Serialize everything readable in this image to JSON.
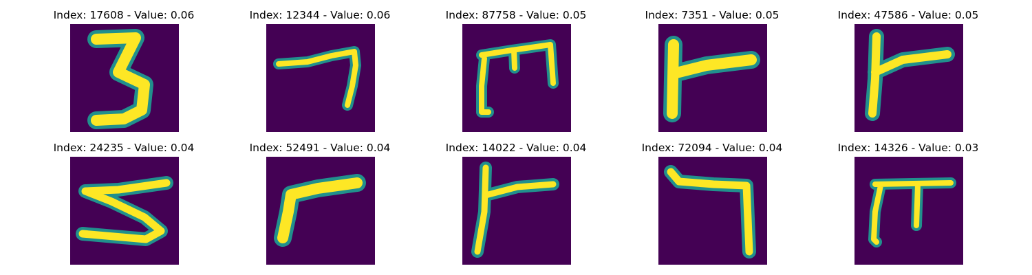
{
  "colors": {
    "background": "#440154",
    "stroke_edge": "#21908d",
    "stroke_core": "#fde725"
  },
  "samples": [
    {
      "title": "Index: 17608 - Value: 0.06",
      "glyph": "three"
    },
    {
      "title": "Index: 12344 - Value: 0.06",
      "glyph": "seven"
    },
    {
      "title": "Index: 87758 - Value: 0.05",
      "glyph": "m-shape"
    },
    {
      "title": "Index: 7351 - Value: 0.05",
      "glyph": "r-shape"
    },
    {
      "title": "Index: 47586 - Value: 0.05",
      "glyph": "r-shape"
    },
    {
      "title": "Index: 24235 - Value: 0.04",
      "glyph": "five"
    },
    {
      "title": "Index: 52491 - Value: 0.04",
      "glyph": "r-shape"
    },
    {
      "title": "Index: 14022 - Value: 0.04",
      "glyph": "r-shape"
    },
    {
      "title": "Index: 72094 - Value: 0.04",
      "glyph": "seven"
    },
    {
      "title": "Index: 14326 - Value: 0.03",
      "glyph": "pi-shape"
    }
  ]
}
